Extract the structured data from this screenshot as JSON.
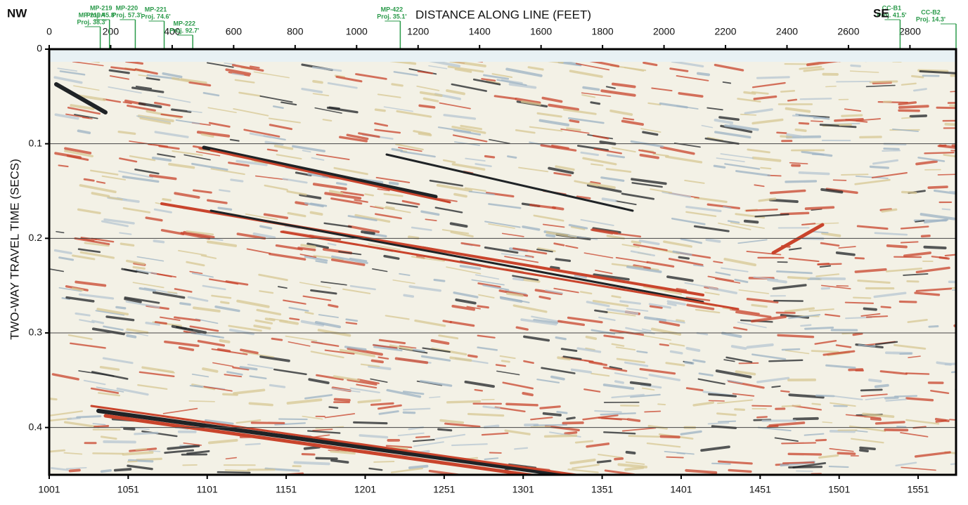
{
  "chart_data": {
    "type": "seismic-section",
    "title": "DISTANCE ALONG LINE (FEET)",
    "y_label": "TWO-WAY TRAVEL TIME (SECS)",
    "left_label": "NW",
    "right_label": "SE",
    "xlim": [
      0,
      2950
    ],
    "xticks": [
      0,
      200,
      400,
      600,
      800,
      1000,
      1200,
      1400,
      1600,
      1800,
      2000,
      2200,
      2400,
      2600,
      2800
    ],
    "x2lim": [
      1001,
      1575
    ],
    "x2ticks": [
      1001,
      1051,
      1101,
      1151,
      1201,
      1251,
      1301,
      1351,
      1401,
      1451,
      1501,
      1551
    ],
    "ylim": [
      0,
      0.45
    ],
    "yticks": [
      0,
      0.1,
      0.2,
      0.3,
      0.4
    ],
    "grid": true,
    "wells": [
      {
        "name": "MP-219A",
        "proj": "Proj. 38.3'",
        "x": 166
      },
      {
        "name": "MP-219",
        "proj": "Proj. 45.8'",
        "x": 196
      },
      {
        "name": "MP-220",
        "proj": "Proj. 57.3'",
        "x": 280
      },
      {
        "name": "MP-221",
        "proj": "Proj. 74.6'",
        "x": 374
      },
      {
        "name": "MP-222",
        "proj": "Proj. 92.7'",
        "x": 467
      },
      {
        "name": "MP-422",
        "proj": "Proj. 35.1'",
        "x": 1142
      },
      {
        "name": "CC-B1",
        "proj": "Proj. 41.5'",
        "x": 2768
      },
      {
        "name": "CC-B2",
        "proj": "Proj. 14.3'",
        "x": 2950
      }
    ]
  }
}
